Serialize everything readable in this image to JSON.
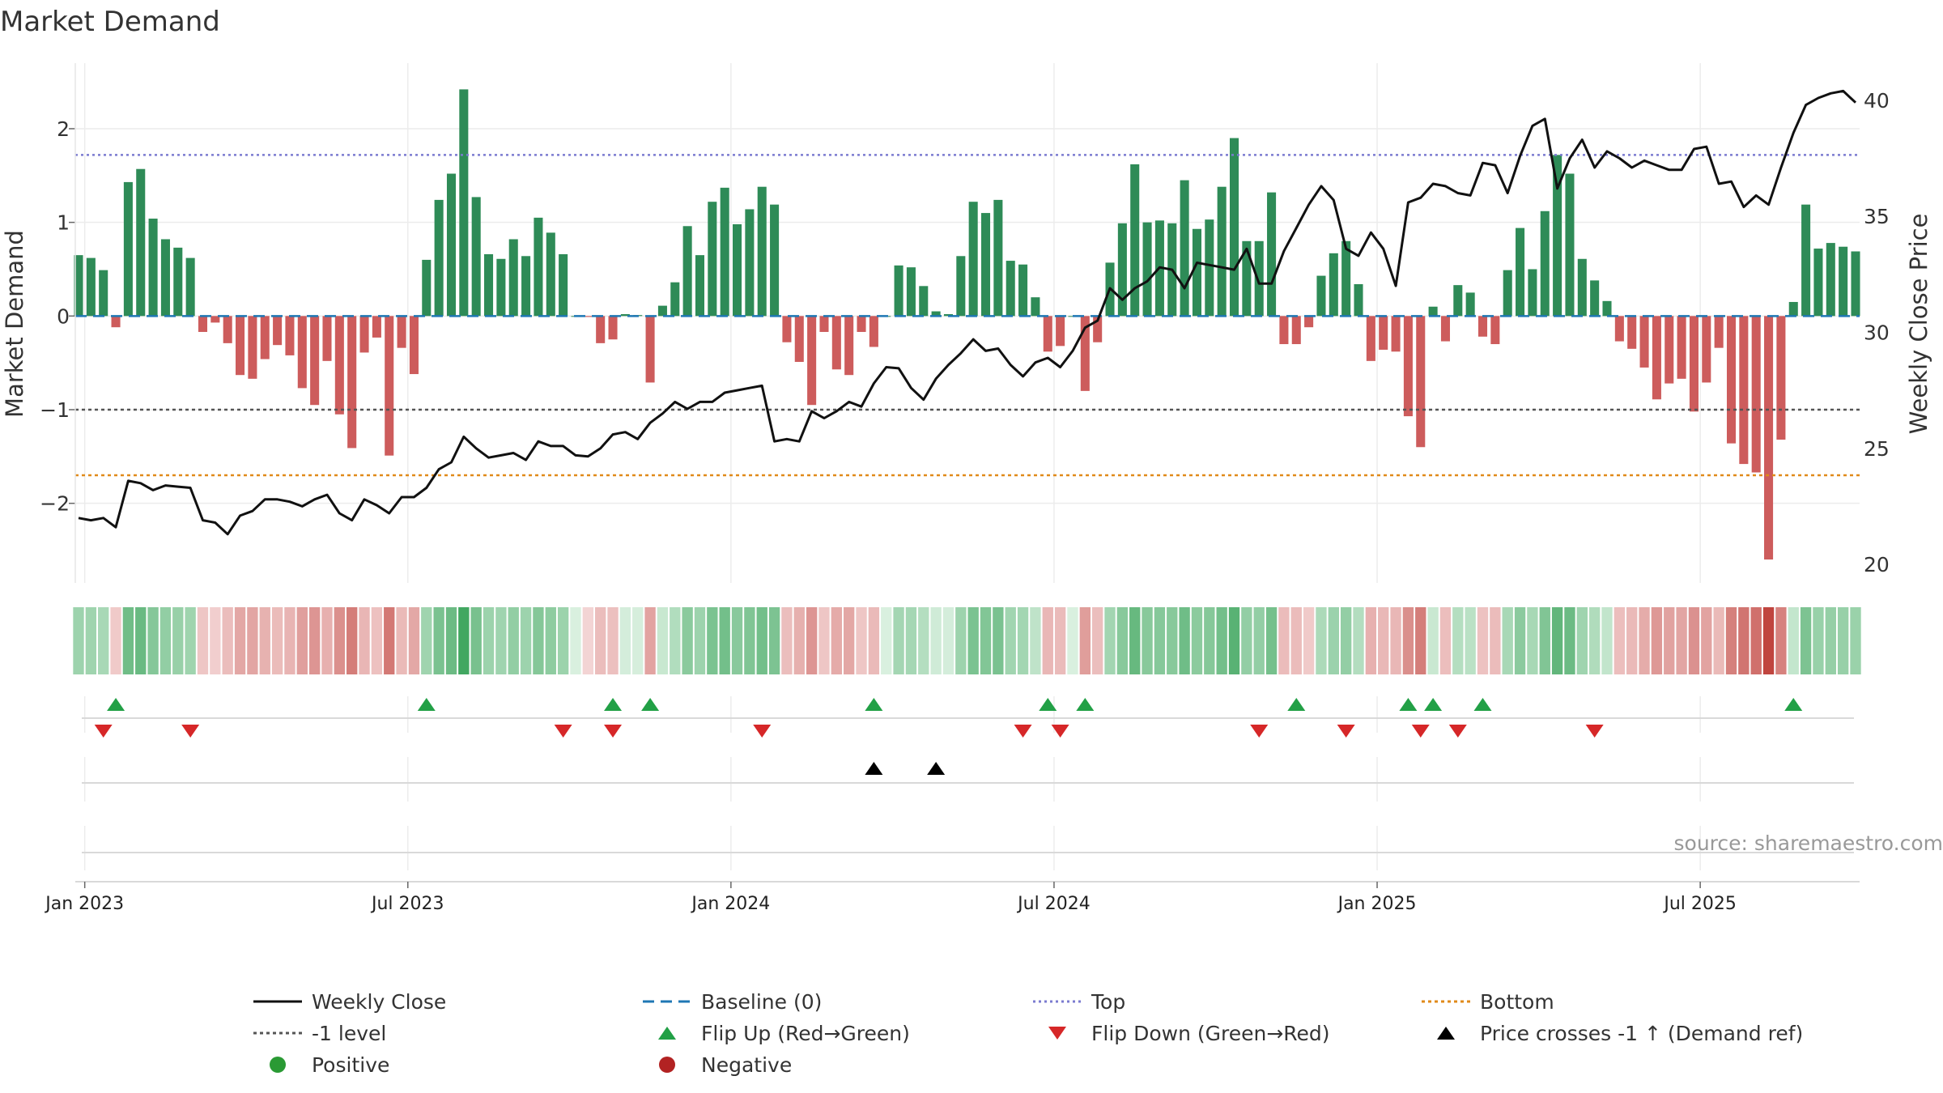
{
  "title": "Market Demand",
  "source_note": "source: sharemaestro.com",
  "colors": {
    "positive_bar": "#2e8b57",
    "negative_bar": "#cd5c5c",
    "price_line": "#111111",
    "baseline": "#1f77b4",
    "top_line": "#7b7bd0",
    "minus_one_line": "#555555",
    "bottom_line": "#e08a1a",
    "flip_up": "#22a046",
    "flip_down": "#d62728",
    "price_cross": "#000000",
    "positive_dot": "#2a9a34",
    "negative_dot": "#b22222"
  },
  "legend": [
    {
      "label": "Weekly Close",
      "kind": "line",
      "color": "#111111",
      "dash": ""
    },
    {
      "label": "Baseline (0)",
      "kind": "line",
      "color": "#1f77b4",
      "dash": "14,8"
    },
    {
      "label": "Top",
      "kind": "line",
      "color": "#7b7bd0",
      "dash": "3,4"
    },
    {
      "label": "Bottom",
      "kind": "line",
      "color": "#e08a1a",
      "dash": "4,4"
    },
    {
      "label": "-1 level",
      "kind": "line",
      "color": "#555555",
      "dash": "4,4"
    },
    {
      "label": "Flip Up (Red→Green)",
      "kind": "tri-up",
      "color": "#22a046"
    },
    {
      "label": "Flip Down (Green→Red)",
      "kind": "tri-down",
      "color": "#d62728"
    },
    {
      "label": "Price crosses -1 ↑ (Demand ref)",
      "kind": "tri-up",
      "color": "#000000"
    },
    {
      "label": "Positive",
      "kind": "dot",
      "color": "#2a9a34"
    },
    {
      "label": "Negative",
      "kind": "dot",
      "color": "#b22222"
    }
  ],
  "chart_data": {
    "type": "bar",
    "title": "Market Demand",
    "ylabel": "Market Demand",
    "y2label": "Weekly Close Price",
    "ylim": [
      -2.85,
      2.7
    ],
    "y2lim": [
      19.2,
      41.6
    ],
    "y_ticks": [
      -2,
      -1,
      0,
      1,
      2
    ],
    "y_tick_labels": [
      "−2",
      "−1",
      "0",
      "1",
      "2"
    ],
    "y2_ticks": [
      20,
      25,
      30,
      35,
      40
    ],
    "x_ticks": [
      0.5,
      26.5,
      52.5,
      78.5,
      104.5,
      130.5
    ],
    "x_tick_labels": [
      "Jan 2023",
      "Jul 2023",
      "Jan 2024",
      "Jul 2024",
      "Jan 2025",
      "Jul 2025"
    ],
    "reference_lines": {
      "baseline": 0,
      "top": 1.72,
      "minus_one": -1,
      "bottom": -1.7
    },
    "grid": true,
    "demand": [
      0.65,
      0.62,
      0.49,
      -0.12,
      1.43,
      1.57,
      1.04,
      0.82,
      0.73,
      0.62,
      -0.17,
      -0.07,
      -0.29,
      -0.63,
      -0.67,
      -0.46,
      -0.31,
      -0.42,
      -0.77,
      -0.95,
      -0.48,
      -1.05,
      -1.41,
      -0.39,
      -0.23,
      -1.49,
      -0.34,
      -0.62,
      0.6,
      1.24,
      1.52,
      2.42,
      1.27,
      0.66,
      0.61,
      0.82,
      0.64,
      1.05,
      0.89,
      0.66,
      0.0,
      -0.01,
      -0.29,
      -0.25,
      0.02,
      0.01,
      -0.71,
      0.11,
      0.36,
      0.96,
      0.65,
      1.22,
      1.37,
      0.98,
      1.14,
      1.38,
      1.19,
      -0.28,
      -0.49,
      -0.95,
      -0.17,
      -0.57,
      -0.63,
      -0.17,
      -0.33,
      0.0,
      0.54,
      0.52,
      0.32,
      0.05,
      0.02,
      0.64,
      1.22,
      1.1,
      1.24,
      0.59,
      0.55,
      0.2,
      -0.38,
      -0.32,
      0.0,
      -0.8,
      -0.28,
      0.57,
      0.99,
      1.62,
      1.0,
      1.02,
      0.99,
      1.45,
      0.93,
      1.03,
      1.38,
      1.9,
      0.8,
      0.8,
      1.32,
      -0.3,
      -0.3,
      -0.12,
      0.43,
      0.67,
      0.8,
      0.34,
      -0.48,
      -0.36,
      -0.38,
      -1.07,
      -1.4,
      0.1,
      -0.27,
      0.33,
      0.25,
      -0.22,
      -0.3,
      0.49,
      0.94,
      0.5,
      1.12,
      1.72,
      1.52,
      0.61,
      0.38,
      0.16,
      -0.27,
      -0.35,
      -0.55,
      -0.89,
      -0.72,
      -0.67,
      -1.02,
      -0.71,
      -0.34,
      -1.36,
      -1.58,
      -1.67,
      -2.6,
      -1.32,
      0.15,
      1.19,
      0.72,
      0.78,
      0.74,
      0.69
    ],
    "price": [
      22.0,
      21.9,
      22.0,
      21.6,
      23.6,
      23.5,
      23.2,
      23.4,
      23.35,
      23.3,
      21.9,
      21.8,
      21.3,
      22.1,
      22.3,
      22.8,
      22.8,
      22.7,
      22.5,
      22.8,
      23.0,
      22.2,
      21.9,
      22.8,
      22.55,
      22.2,
      22.9,
      22.9,
      23.3,
      24.1,
      24.4,
      25.5,
      25.0,
      24.6,
      24.7,
      24.8,
      24.5,
      25.3,
      25.1,
      25.1,
      24.7,
      24.65,
      25.0,
      25.6,
      25.7,
      25.4,
      26.1,
      26.5,
      27.0,
      26.7,
      27.0,
      27.0,
      27.4,
      27.5,
      27.6,
      27.7,
      25.3,
      25.4,
      25.3,
      26.6,
      26.3,
      26.6,
      27.0,
      26.8,
      27.8,
      28.5,
      28.45,
      27.6,
      27.1,
      28.0,
      28.6,
      29.1,
      29.7,
      29.2,
      29.3,
      28.6,
      28.1,
      28.7,
      28.9,
      28.5,
      29.2,
      30.2,
      30.5,
      31.9,
      31.4,
      31.9,
      32.2,
      32.8,
      32.7,
      31.9,
      33.0,
      32.9,
      32.8,
      32.7,
      33.6,
      32.1,
      32.1,
      33.5,
      34.5,
      35.5,
      36.3,
      35.7,
      33.6,
      33.3,
      34.3,
      33.6,
      32.0,
      35.6,
      35.8,
      36.4,
      36.3,
      36.0,
      35.9,
      37.3,
      37.2,
      36.0,
      37.6,
      38.9,
      39.2,
      36.2,
      37.5,
      38.3,
      37.1,
      37.8,
      37.5,
      37.1,
      37.4,
      37.2,
      37.0,
      37.0,
      37.9,
      38.0,
      36.4,
      36.5,
      35.4,
      35.9,
      35.5,
      37.1,
      38.6,
      39.8,
      40.1,
      40.3,
      40.4,
      39.9
    ],
    "flip_up_weeks": [
      3,
      28,
      43,
      46,
      64,
      78,
      81,
      98,
      107,
      109,
      113,
      138
    ],
    "flip_down_weeks": [
      2,
      9,
      39,
      43,
      55,
      76,
      79,
      95,
      102,
      108,
      111,
      122
    ],
    "price_cross_weeks": [
      64,
      69
    ]
  }
}
